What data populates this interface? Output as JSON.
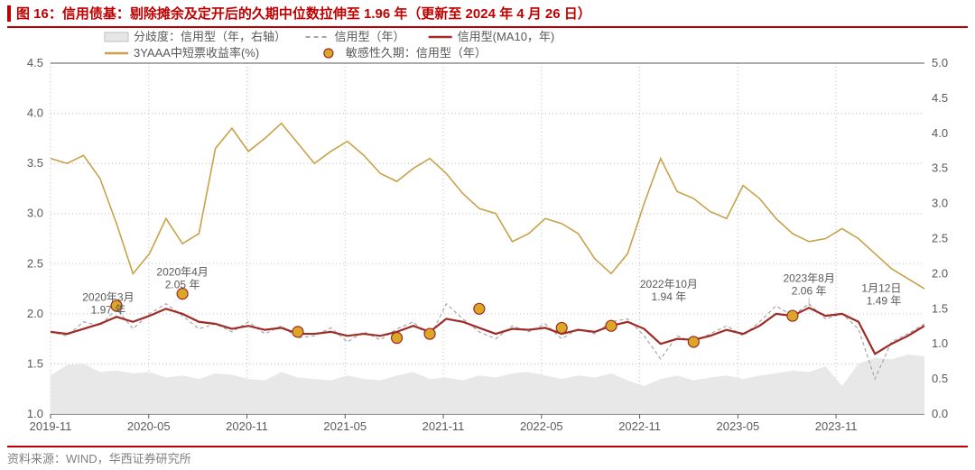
{
  "title": "图 16：信用债基：剔除摊余及定开后的久期中位数拉伸至 1.96 年（更新至 2024 年 4 月 26 日）",
  "source": "资料来源：WIND，华西证券研究所",
  "chart": {
    "type": "line",
    "background_color": "#ffffff",
    "plot_margin": {
      "l": 48,
      "r": 48,
      "t": 38,
      "b": 30
    },
    "x": {
      "ticks": [
        "2019-11",
        "2020-05",
        "2020-11",
        "2021-05",
        "2021-11",
        "2022-05",
        "2022-11",
        "2023-05",
        "2023-11"
      ],
      "label_fontsize": 13,
      "grid": true,
      "grid_color": "#bfbfbf",
      "grid_dash": "1,3"
    },
    "y_left": {
      "min": 1.0,
      "max": 4.5,
      "step": 0.5,
      "label_fontsize": 13
    },
    "y_right": {
      "min": 0.0,
      "max": 5.0,
      "step": 0.5,
      "label_fontsize": 13
    },
    "legend": {
      "rows": [
        [
          {
            "key": "divergence",
            "label": "分歧度：信用型（年，右轴）",
            "swatch": "area",
            "color": "#e7e6e6"
          },
          {
            "key": "credit_dashed",
            "label": "信用型（年）",
            "swatch": "dash",
            "color": "#a6a6a6"
          },
          {
            "key": "ma10",
            "label": "信用型(MA10，年)",
            "swatch": "line",
            "color": "#9e2b25"
          }
        ],
        [
          {
            "key": "yield",
            "label": "3YAAA中短票收益率(%)",
            "swatch": "line",
            "color": "#c7a24a"
          },
          {
            "key": "sens",
            "label": "敏感性久期：信用型（年）",
            "swatch": "marker",
            "color": "#dca626",
            "border": "#9e2b25"
          }
        ]
      ],
      "fontsize": 13
    },
    "series": {
      "divergence": {
        "axis": "right",
        "type": "area",
        "color": "#e7e6e6",
        "opacity": 0.9,
        "y": [
          0.55,
          0.7,
          0.72,
          0.6,
          0.62,
          0.58,
          0.6,
          0.52,
          0.55,
          0.5,
          0.58,
          0.56,
          0.5,
          0.48,
          0.6,
          0.52,
          0.5,
          0.48,
          0.55,
          0.5,
          0.48,
          0.55,
          0.6,
          0.5,
          0.52,
          0.48,
          0.55,
          0.52,
          0.58,
          0.6,
          0.55,
          0.5,
          0.55,
          0.52,
          0.58,
          0.48,
          0.4,
          0.5,
          0.55,
          0.48,
          0.52,
          0.55,
          0.5,
          0.55,
          0.58,
          0.62,
          0.6,
          0.68,
          0.4,
          0.72,
          0.8,
          0.78,
          0.85,
          0.82
        ]
      },
      "yield": {
        "axis": "left",
        "type": "line",
        "color": "#c7a24a",
        "width": 1.6,
        "y": [
          3.55,
          3.5,
          3.58,
          3.35,
          2.9,
          2.4,
          2.6,
          2.95,
          2.7,
          2.8,
          3.65,
          3.85,
          3.62,
          3.75,
          3.9,
          3.7,
          3.5,
          3.62,
          3.72,
          3.58,
          3.4,
          3.32,
          3.45,
          3.55,
          3.4,
          3.2,
          3.05,
          3.0,
          2.72,
          2.8,
          2.95,
          2.9,
          2.8,
          2.55,
          2.4,
          2.6,
          3.1,
          3.55,
          3.22,
          3.15,
          3.02,
          2.95,
          3.28,
          3.15,
          2.95,
          2.8,
          2.72,
          2.75,
          2.85,
          2.75,
          2.6,
          2.45,
          2.35,
          2.25
        ]
      },
      "credit_dashed": {
        "axis": "left",
        "type": "line",
        "color": "#a6a6a6",
        "width": 1.2,
        "dash": "4,3",
        "y": [
          1.82,
          1.78,
          1.92,
          1.88,
          2.05,
          1.85,
          2.0,
          2.1,
          1.98,
          1.85,
          1.9,
          1.82,
          1.92,
          1.8,
          1.88,
          1.76,
          1.78,
          1.86,
          1.72,
          1.82,
          1.74,
          1.85,
          1.92,
          1.76,
          2.1,
          1.95,
          1.82,
          1.75,
          1.88,
          1.82,
          1.9,
          1.75,
          1.85,
          1.8,
          1.92,
          1.95,
          1.78,
          1.55,
          1.78,
          1.72,
          1.8,
          1.88,
          1.78,
          1.92,
          2.08,
          1.98,
          2.1,
          1.95,
          2.0,
          1.85,
          1.35,
          1.72,
          1.8,
          1.9
        ]
      },
      "ma10": {
        "axis": "left",
        "type": "line",
        "color": "#9e2b25",
        "width": 2.2,
        "y": [
          1.82,
          1.8,
          1.85,
          1.9,
          1.97,
          1.92,
          1.98,
          2.05,
          2.0,
          1.92,
          1.9,
          1.85,
          1.88,
          1.84,
          1.86,
          1.8,
          1.8,
          1.82,
          1.78,
          1.8,
          1.78,
          1.82,
          1.88,
          1.82,
          1.95,
          1.92,
          1.86,
          1.8,
          1.85,
          1.84,
          1.86,
          1.8,
          1.84,
          1.82,
          1.88,
          1.92,
          1.85,
          1.7,
          1.75,
          1.74,
          1.78,
          1.84,
          1.8,
          1.88,
          2.0,
          1.98,
          2.06,
          1.98,
          2.0,
          1.92,
          1.6,
          1.7,
          1.78,
          1.88
        ]
      },
      "sens": {
        "axis": "left",
        "type": "marker",
        "color": "#dca626",
        "border": "#9e2b25",
        "size": 6,
        "points": [
          {
            "xi": 4,
            "y": 2.08
          },
          {
            "xi": 8,
            "y": 2.2
          },
          {
            "xi": 15,
            "y": 1.82
          },
          {
            "xi": 21,
            "y": 1.76
          },
          {
            "xi": 23,
            "y": 1.8
          },
          {
            "xi": 26,
            "y": 2.05
          },
          {
            "xi": 31,
            "y": 1.86
          },
          {
            "xi": 34,
            "y": 1.88
          },
          {
            "xi": 39,
            "y": 1.72
          },
          {
            "xi": 45,
            "y": 1.98
          }
        ]
      }
    },
    "annotations": [
      {
        "xi": 3.5,
        "y": 2.13,
        "lines": [
          "2020年3月",
          "1.97 年"
        ]
      },
      {
        "xi": 8,
        "y": 2.38,
        "lines": [
          "2020年4月",
          "2.05 年"
        ]
      },
      {
        "xi": 37.5,
        "y": 2.26,
        "lines": [
          "2022年10月",
          "1.94 年"
        ]
      },
      {
        "xi": 46,
        "y": 2.32,
        "lines": [
          "2023年8月",
          "2.06 年"
        ],
        "leader": {
          "xi": 46,
          "y": 2.08
        }
      },
      {
        "xi": 51.6,
        "y": 2.22,
        "lines": [
          "1月12日",
          "1.49 年"
        ],
        "align": "end"
      }
    ],
    "n_x": 54
  }
}
